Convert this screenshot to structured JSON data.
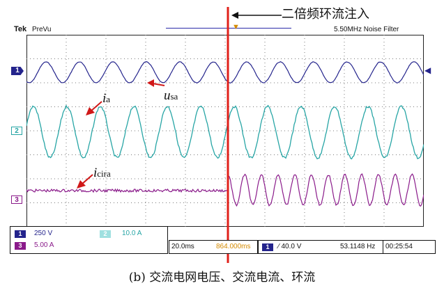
{
  "header": {
    "brand": "Tek",
    "mode": "PreVu",
    "right_info": "5.50MHz  Noise Filter",
    "trigger_marker": "T"
  },
  "annotation": {
    "label": "二倍频环流注入"
  },
  "channels": [
    {
      "id": "1",
      "color": "#24248c"
    },
    {
      "id": "2",
      "color": "#27a5a5"
    },
    {
      "id": "3",
      "color": "#8a1a8a"
    }
  ],
  "waveform_labels": {
    "usa": {
      "main": "u",
      "sub": "sa"
    },
    "ia": {
      "main": "i",
      "sub": "a"
    },
    "icira": {
      "main": "i",
      "sub": "cira"
    }
  },
  "status": {
    "ch1_badge": "1",
    "ch1_scale": "250 V",
    "ch2_badge": "2",
    "ch2_scale": "10.0 A",
    "ch3_badge": "3",
    "ch3_scale": "5.00 A",
    "timebase": "20.0ms",
    "position": "864.000ms",
    "trig_badge": "1",
    "trig_level": "⁄ 40.0 V",
    "frequency": "53.1148 Hz",
    "clock": "00:25:54"
  },
  "caption": "(b) 交流电网电压、交流电流、环流",
  "colors": {
    "trigger_line": "#e0201a",
    "grid": "#7a7a7a"
  }
}
